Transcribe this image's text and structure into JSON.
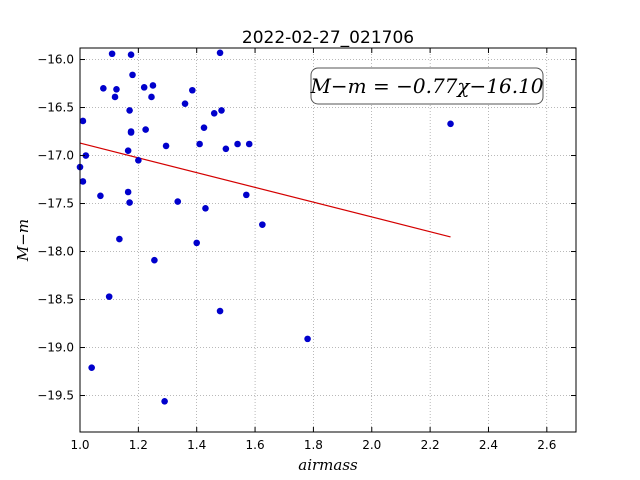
{
  "chart_data": {
    "type": "scatter",
    "title": "2022-02-27_021706",
    "xlabel": "airmass",
    "ylabel": "M−m",
    "xlim": [
      1.0,
      2.7
    ],
    "ylim": [
      -19.88,
      -15.88
    ],
    "y_inverted": true,
    "grid": true,
    "xticks": [
      1.0,
      1.2,
      1.4,
      1.6,
      1.8,
      2.0,
      2.2,
      2.4,
      2.6
    ],
    "xtick_labels": [
      "1.0",
      "1.2",
      "1.4",
      "1.6",
      "1.8",
      "2.0",
      "2.2",
      "2.4",
      "2.6"
    ],
    "yticks": [
      -16.0,
      -16.5,
      -17.0,
      -17.5,
      -18.0,
      -18.5,
      -19.0,
      -19.5
    ],
    "ytick_labels": [
      "−16.0",
      "−16.5",
      "−17.0",
      "−17.5",
      "−18.0",
      "−18.5",
      "−19.0",
      "−19.5"
    ],
    "annotation": "M−m = −0.77χ−16.10",
    "fit": {
      "slope": -0.77,
      "intercept": -16.1,
      "x_range": [
        1.0,
        2.27
      ],
      "color": "#d40000"
    },
    "point_color": "#0000cc",
    "points": [
      [
        1.0,
        -17.12
      ],
      [
        1.01,
        -17.27
      ],
      [
        1.01,
        -16.64
      ],
      [
        1.02,
        -17.0
      ],
      [
        1.04,
        -19.21
      ],
      [
        1.07,
        -17.42
      ],
      [
        1.08,
        -16.3
      ],
      [
        1.1,
        -18.47
      ],
      [
        1.11,
        -15.94
      ],
      [
        1.12,
        -16.39
      ],
      [
        1.125,
        -16.31
      ],
      [
        1.135,
        -17.87
      ],
      [
        1.165,
        -16.95
      ],
      [
        1.165,
        -17.38
      ],
      [
        1.17,
        -17.49
      ],
      [
        1.17,
        -16.53
      ],
      [
        1.175,
        -16.76
      ],
      [
        1.175,
        -16.75
      ],
      [
        1.175,
        -15.95
      ],
      [
        1.18,
        -16.16
      ],
      [
        1.2,
        -17.05
      ],
      [
        1.22,
        -16.29
      ],
      [
        1.225,
        -16.73
      ],
      [
        1.245,
        -16.39
      ],
      [
        1.25,
        -16.27
      ],
      [
        1.255,
        -18.09
      ],
      [
        1.29,
        -19.56
      ],
      [
        1.295,
        -16.9
      ],
      [
        1.335,
        -17.48
      ],
      [
        1.36,
        -16.46
      ],
      [
        1.385,
        -16.32
      ],
      [
        1.4,
        -17.91
      ],
      [
        1.41,
        -16.88
      ],
      [
        1.425,
        -16.71
      ],
      [
        1.43,
        -17.55
      ],
      [
        1.46,
        -16.56
      ],
      [
        1.48,
        -15.93
      ],
      [
        1.48,
        -18.62
      ],
      [
        1.485,
        -16.53
      ],
      [
        1.5,
        -16.93
      ],
      [
        1.54,
        -16.88
      ],
      [
        1.57,
        -17.41
      ],
      [
        1.58,
        -16.88
      ],
      [
        1.625,
        -17.72
      ],
      [
        1.78,
        -18.91
      ],
      [
        2.27,
        -16.67
      ]
    ]
  }
}
